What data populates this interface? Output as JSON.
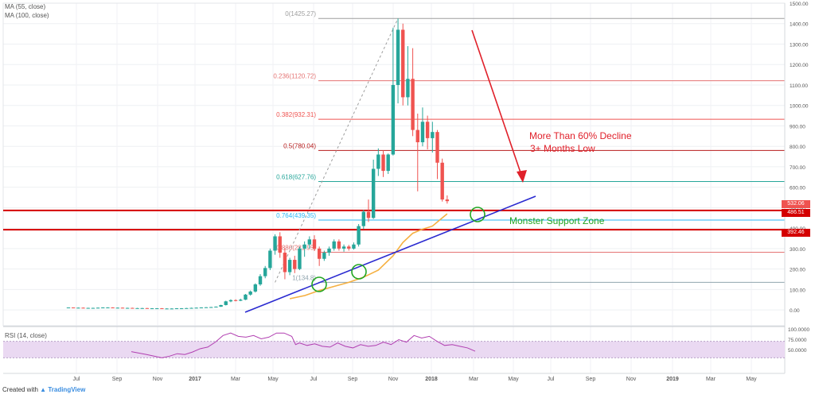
{
  "legend": {
    "ma55": "MA (55, close)",
    "ma100": "MA (100, close)",
    "rsi": "RSI (14, close)"
  },
  "footer": {
    "created_with": "Created with",
    "brand": "TradingView"
  },
  "annotations": {
    "decline_line1": "More Than 60% Decline",
    "decline_line2": "3+ Months Low",
    "support_zone": "Monster Support Zone"
  },
  "price_tags": {
    "last": "532.06",
    "support_upper": "486.51",
    "support_lower": "392.46"
  },
  "colors": {
    "candle_up": "#26a69a",
    "candle_down": "#ef5350",
    "ma55": "#f5b041",
    "trendline": "#2a2ad0",
    "support": "#d40000",
    "arrow": "#e0202a",
    "circle": "#23a623",
    "support_text": "#23a623",
    "rsi_line": "#b13fb1",
    "rsi_band": "#ead9f2"
  },
  "chart_data": {
    "type": "candlestick",
    "title": "",
    "y_range": [
      -50,
      1500
    ],
    "y_ticks": [
      0,
      100,
      200,
      300,
      400,
      500,
      600,
      700,
      800,
      900,
      1000,
      1100,
      1200,
      1300,
      1400,
      1500
    ],
    "y_tick_labels": [
      "0.00",
      "100.00",
      "200.00",
      "300.00",
      "400.00",
      "500.00",
      "600.00",
      "700.00",
      "800.00",
      "900.00",
      "1000.00",
      "1100.00",
      "1200.00",
      "1300.00",
      "1400.00",
      "1500.00"
    ],
    "x_labels": [
      "Jul",
      "Sep",
      "Nov",
      "2017",
      "Mar",
      "May",
      "Jul",
      "Sep",
      "Nov",
      "2018",
      "Mar",
      "May",
      "Jul",
      "Sep",
      "Nov",
      "2019",
      "Mar",
      "May"
    ],
    "fibonacci": [
      {
        "label": "0(1425.27)",
        "value": 1425.27,
        "color": "#9e9e9e"
      },
      {
        "label": "0.236(1120.72)",
        "value": 1120.72,
        "color": "#e57373"
      },
      {
        "label": "0.382(932.31)",
        "value": 932.31,
        "color": "#ef5350"
      },
      {
        "label": "0.5(780.04)",
        "value": 780.04,
        "color": "#b71c1c"
      },
      {
        "label": "0.618(627.76)",
        "value": 627.76,
        "color": "#26a69a"
      },
      {
        "label": "0.764(439.35)",
        "value": 439.35,
        "color": "#29b6f6"
      },
      {
        "label": "0.886(281.95)",
        "value": 281.95,
        "color": "#e57373"
      },
      {
        "label": "1(134.8)",
        "value": 134.8,
        "color": "#90a4ae"
      }
    ],
    "support_levels": [
      486.51,
      392.46
    ],
    "candles": [
      {
        "o": 11,
        "h": 12,
        "l": 10,
        "c": 12
      },
      {
        "o": 12,
        "h": 12,
        "l": 10,
        "c": 11
      },
      {
        "o": 11,
        "h": 12,
        "l": 10,
        "c": 11
      },
      {
        "o": 11,
        "h": 12,
        "l": 10,
        "c": 10
      },
      {
        "o": 10,
        "h": 11,
        "l": 9,
        "c": 10
      },
      {
        "o": 10,
        "h": 11,
        "l": 9,
        "c": 10
      },
      {
        "o": 10,
        "h": 12,
        "l": 9,
        "c": 11
      },
      {
        "o": 11,
        "h": 13,
        "l": 10,
        "c": 12
      },
      {
        "o": 12,
        "h": 13,
        "l": 11,
        "c": 12
      },
      {
        "o": 12,
        "h": 13,
        "l": 11,
        "c": 11
      },
      {
        "o": 11,
        "h": 12,
        "l": 10,
        "c": 11
      },
      {
        "o": 11,
        "h": 12,
        "l": 10,
        "c": 10
      },
      {
        "o": 10,
        "h": 11,
        "l": 9,
        "c": 10
      },
      {
        "o": 10,
        "h": 11,
        "l": 9,
        "c": 9
      },
      {
        "o": 9,
        "h": 10,
        "l": 8,
        "c": 9
      },
      {
        "o": 9,
        "h": 10,
        "l": 8,
        "c": 9
      },
      {
        "o": 9,
        "h": 10,
        "l": 8,
        "c": 8
      },
      {
        "o": 8,
        "h": 9,
        "l": 7,
        "c": 8
      },
      {
        "o": 8,
        "h": 9,
        "l": 7,
        "c": 8
      },
      {
        "o": 8,
        "h": 9,
        "l": 7,
        "c": 7
      },
      {
        "o": 7,
        "h": 8,
        "l": 6,
        "c": 7
      },
      {
        "o": 7,
        "h": 8,
        "l": 6,
        "c": 7
      },
      {
        "o": 7,
        "h": 9,
        "l": 6,
        "c": 8
      },
      {
        "o": 8,
        "h": 9,
        "l": 7,
        "c": 8
      },
      {
        "o": 8,
        "h": 10,
        "l": 7,
        "c": 9
      },
      {
        "o": 9,
        "h": 11,
        "l": 8,
        "c": 10
      },
      {
        "o": 10,
        "h": 12,
        "l": 9,
        "c": 11
      },
      {
        "o": 11,
        "h": 13,
        "l": 10,
        "c": 12
      },
      {
        "o": 12,
        "h": 14,
        "l": 11,
        "c": 13
      },
      {
        "o": 13,
        "h": 15,
        "l": 12,
        "c": 14
      },
      {
        "o": 14,
        "h": 17,
        "l": 13,
        "c": 16
      },
      {
        "o": 16,
        "h": 25,
        "l": 15,
        "c": 24
      },
      {
        "o": 24,
        "h": 45,
        "l": 22,
        "c": 42
      },
      {
        "o": 42,
        "h": 52,
        "l": 38,
        "c": 48
      },
      {
        "o": 48,
        "h": 52,
        "l": 42,
        "c": 45
      },
      {
        "o": 45,
        "h": 55,
        "l": 43,
        "c": 50
      },
      {
        "o": 50,
        "h": 78,
        "l": 48,
        "c": 75
      },
      {
        "o": 75,
        "h": 95,
        "l": 70,
        "c": 90
      },
      {
        "o": 90,
        "h": 130,
        "l": 85,
        "c": 125
      },
      {
        "o": 125,
        "h": 175,
        "l": 118,
        "c": 165
      },
      {
        "o": 165,
        "h": 215,
        "l": 155,
        "c": 205
      },
      {
        "o": 205,
        "h": 300,
        "l": 195,
        "c": 290
      },
      {
        "o": 290,
        "h": 370,
        "l": 270,
        "c": 360
      },
      {
        "o": 360,
        "h": 380,
        "l": 255,
        "c": 280
      },
      {
        "o": 280,
        "h": 300,
        "l": 150,
        "c": 185
      },
      {
        "o": 185,
        "h": 255,
        "l": 170,
        "c": 245
      },
      {
        "o": 245,
        "h": 265,
        "l": 180,
        "c": 200
      },
      {
        "o": 200,
        "h": 310,
        "l": 195,
        "c": 300
      },
      {
        "o": 300,
        "h": 335,
        "l": 260,
        "c": 320
      },
      {
        "o": 320,
        "h": 360,
        "l": 300,
        "c": 345
      },
      {
        "o": 345,
        "h": 365,
        "l": 290,
        "c": 300
      },
      {
        "o": 300,
        "h": 310,
        "l": 215,
        "c": 250
      },
      {
        "o": 250,
        "h": 290,
        "l": 240,
        "c": 280
      },
      {
        "o": 280,
        "h": 310,
        "l": 265,
        "c": 300
      },
      {
        "o": 300,
        "h": 345,
        "l": 290,
        "c": 335
      },
      {
        "o": 335,
        "h": 345,
        "l": 290,
        "c": 300
      },
      {
        "o": 300,
        "h": 320,
        "l": 285,
        "c": 310
      },
      {
        "o": 310,
        "h": 318,
        "l": 290,
        "c": 300
      },
      {
        "o": 300,
        "h": 330,
        "l": 295,
        "c": 320
      },
      {
        "o": 320,
        "h": 420,
        "l": 310,
        "c": 410
      },
      {
        "o": 410,
        "h": 490,
        "l": 395,
        "c": 480
      },
      {
        "o": 480,
        "h": 540,
        "l": 430,
        "c": 450
      },
      {
        "o": 450,
        "h": 735,
        "l": 445,
        "c": 690
      },
      {
        "o": 690,
        "h": 790,
        "l": 655,
        "c": 760
      },
      {
        "o": 760,
        "h": 780,
        "l": 650,
        "c": 680
      },
      {
        "o": 680,
        "h": 765,
        "l": 665,
        "c": 760
      },
      {
        "o": 760,
        "h": 1380,
        "l": 755,
        "c": 1100
      },
      {
        "o": 1100,
        "h": 1425,
        "l": 1010,
        "c": 1370
      },
      {
        "o": 1370,
        "h": 1400,
        "l": 1000,
        "c": 1040
      },
      {
        "o": 1040,
        "h": 1290,
        "l": 1000,
        "c": 1130
      },
      {
        "o": 1130,
        "h": 1280,
        "l": 850,
        "c": 880
      },
      {
        "o": 880,
        "h": 960,
        "l": 580,
        "c": 820
      },
      {
        "o": 820,
        "h": 990,
        "l": 800,
        "c": 920
      },
      {
        "o": 920,
        "h": 950,
        "l": 785,
        "c": 840
      },
      {
        "o": 840,
        "h": 920,
        "l": 770,
        "c": 870
      },
      {
        "o": 870,
        "h": 880,
        "l": 640,
        "c": 720
      },
      {
        "o": 720,
        "h": 740,
        "l": 530,
        "c": 540
      },
      {
        "o": 540,
        "h": 560,
        "l": 520,
        "c": 532
      }
    ],
    "ma55": [
      {
        "i": 45,
        "v": 55
      },
      {
        "i": 48,
        "v": 70
      },
      {
        "i": 51,
        "v": 95
      },
      {
        "i": 54,
        "v": 115
      },
      {
        "i": 57,
        "v": 135
      },
      {
        "i": 60,
        "v": 160
      },
      {
        "i": 63,
        "v": 195
      },
      {
        "i": 66,
        "v": 265
      },
      {
        "i": 68,
        "v": 330
      },
      {
        "i": 70,
        "v": 375
      },
      {
        "i": 72,
        "v": 395
      },
      {
        "i": 74,
        "v": 410
      },
      {
        "i": 76,
        "v": 450
      },
      {
        "i": 77,
        "v": 470
      }
    ],
    "rsi": {
      "range": [
        0,
        100
      ],
      "ticks": [
        50,
        75,
        100
      ],
      "tick_labels": [
        "50.0000",
        "75.0000",
        "100.0000"
      ],
      "band": [
        30,
        70
      ],
      "values": [
        {
          "i": 32,
          "v": 45
        },
        {
          "i": 36,
          "v": 38
        },
        {
          "i": 40,
          "v": 30
        },
        {
          "i": 42,
          "v": 34
        },
        {
          "i": 44,
          "v": 40
        },
        {
          "i": 46,
          "v": 38
        },
        {
          "i": 48,
          "v": 44
        },
        {
          "i": 50,
          "v": 52
        },
        {
          "i": 52,
          "v": 56
        },
        {
          "i": 54,
          "v": 68
        },
        {
          "i": 56,
          "v": 84
        },
        {
          "i": 58,
          "v": 90
        },
        {
          "i": 60,
          "v": 82
        },
        {
          "i": 62,
          "v": 80
        },
        {
          "i": 64,
          "v": 84
        },
        {
          "i": 66,
          "v": 76
        },
        {
          "i": 68,
          "v": 80
        },
        {
          "i": 70,
          "v": 90
        },
        {
          "i": 72,
          "v": 90
        },
        {
          "i": 74,
          "v": 82
        },
        {
          "i": 75,
          "v": 62
        },
        {
          "i": 76,
          "v": 66
        },
        {
          "i": 78,
          "v": 60
        },
        {
          "i": 80,
          "v": 64
        },
        {
          "i": 82,
          "v": 58
        },
        {
          "i": 84,
          "v": 56
        },
        {
          "i": 86,
          "v": 66
        },
        {
          "i": 88,
          "v": 58
        },
        {
          "i": 90,
          "v": 54
        },
        {
          "i": 92,
          "v": 62
        },
        {
          "i": 94,
          "v": 58
        },
        {
          "i": 96,
          "v": 60
        },
        {
          "i": 98,
          "v": 68
        },
        {
          "i": 100,
          "v": 62
        },
        {
          "i": 102,
          "v": 74
        },
        {
          "i": 104,
          "v": 68
        },
        {
          "i": 106,
          "v": 84
        },
        {
          "i": 108,
          "v": 78
        },
        {
          "i": 110,
          "v": 82
        },
        {
          "i": 112,
          "v": 70
        },
        {
          "i": 114,
          "v": 60
        },
        {
          "i": 116,
          "v": 62
        },
        {
          "i": 118,
          "v": 58
        },
        {
          "i": 120,
          "v": 54
        },
        {
          "i": 122,
          "v": 46
        }
      ]
    }
  }
}
